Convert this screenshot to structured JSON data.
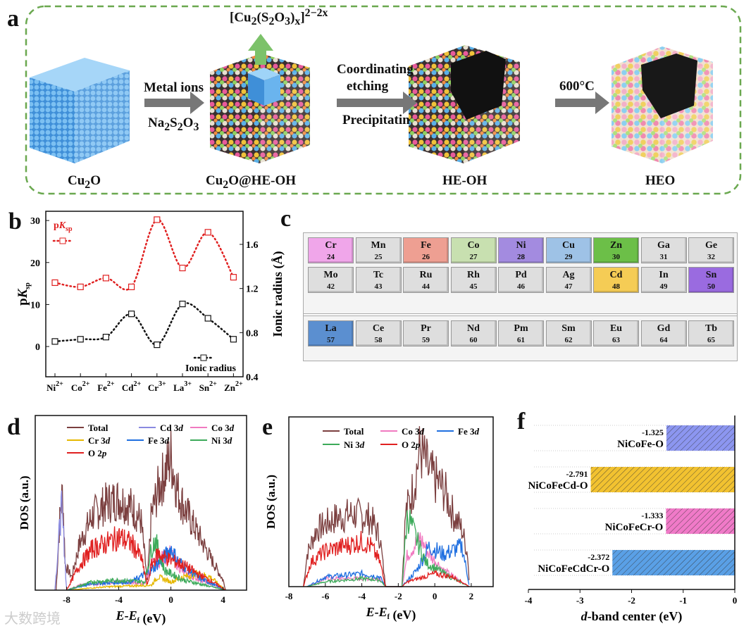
{
  "panel_labels": {
    "a": "a",
    "b": "b",
    "c": "c",
    "d": "d",
    "e": "e",
    "f": "f"
  },
  "panel_a": {
    "stages": [
      "Cu2O",
      "Cu2O@HE-OH",
      "HE-OH",
      "HEO"
    ],
    "stage_labels_html": [
      "Cu<sub>2</sub>O",
      "Cu<sub>2</sub>O@HE-OH",
      "HE-OH",
      "HEO"
    ],
    "step1": {
      "top": "Metal ions",
      "bottom": "Na2S2O3",
      "bottom_html": "Na<sub>2</sub>S<sub>2</sub>O<sub>3</sub>"
    },
    "step2": {
      "top1": "Coordinating",
      "top2": "etching",
      "bottom": "Precipitatin"
    },
    "step3": {
      "top": "600°C"
    },
    "released_complex": "[Cu2(S2O3)x]2−2x",
    "released_complex_html": "[Cu<sub>2</sub>(S<sub>2</sub>O<sub>3</sub>)<sub>x</sub>]<sup>2−2x</sup>",
    "colors": {
      "border": "#6aa84f",
      "arrow": "#777777",
      "green_arrow": "#7cc26a",
      "cu2o": "#5aa9e6"
    }
  },
  "chart_data": [
    {
      "id": "b",
      "type": "line",
      "categories": [
        "Ni2+",
        "Co2+",
        "Fe2+",
        "Cd2+",
        "Cr3+",
        "La3+",
        "Sn2+",
        "Zn2+"
      ],
      "category_labels_html": [
        "Ni<sup>2+</sup>",
        "Co<sup>2+</sup>",
        "Fe<sup>2+</sup>",
        "Cd<sup>2+</sup>",
        "Cr<sup>3+</sup>",
        "La<sup>3+</sup>",
        "Sn<sup>2+</sup>",
        "Zn<sup>2+</sup>"
      ],
      "series": [
        {
          "name": "pKsp",
          "axis": "left",
          "color": "#e02020",
          "values": [
            15.2,
            14.2,
            16.3,
            14.2,
            30.2,
            18.7,
            27.2,
            16.5
          ]
        },
        {
          "name": "Ionic radius",
          "axis": "right",
          "color": "#111111",
          "values": [
            0.72,
            0.74,
            0.76,
            0.97,
            0.69,
            1.06,
            0.93,
            0.74
          ]
        }
      ],
      "ylabel": "pKsp",
      "ylabel_right": "Ionic radius (Å)",
      "ylim": [
        -7.2,
        32.2
      ],
      "yticks": [
        0,
        10,
        20,
        30
      ],
      "ylim_right": [
        0.4,
        1.9
      ],
      "yticks_right": [
        "0.4",
        "0.8",
        "1.2",
        "1.6"
      ],
      "legend": [
        "pKsp",
        "Ionic radius"
      ],
      "legend_placement": "top-left / bottom-right"
    },
    {
      "id": "d",
      "type": "line",
      "xlabel": "E-Ef (eV)",
      "ylabel": "DOS (a.u.)",
      "xlim": [
        -10.4,
        5.8
      ],
      "xticks": [
        -8,
        -4,
        0,
        4
      ],
      "ylim": [
        0,
        1.05
      ],
      "series": [
        {
          "name": "Total",
          "color": "#7b3f3f",
          "env": [
            [
              -8.8,
              0
            ],
            [
              -8.5,
              0.45
            ],
            [
              -8.3,
              0.6
            ],
            [
              -8.1,
              0.15
            ],
            [
              -7.6,
              0.08
            ],
            [
              -7,
              0.28
            ],
            [
              -6,
              0.45
            ],
            [
              -5,
              0.52
            ],
            [
              -4,
              0.55
            ],
            [
              -3,
              0.5
            ],
            [
              -2.3,
              0.42
            ],
            [
              -1.8,
              0.05
            ],
            [
              -1.5,
              0.45
            ],
            [
              -1,
              0.6
            ],
            [
              -0.5,
              0.7
            ],
            [
              0,
              0.8
            ],
            [
              0.5,
              0.6
            ],
            [
              1,
              0.5
            ],
            [
              2,
              0.35
            ],
            [
              3,
              0.2
            ],
            [
              4,
              0.06
            ],
            [
              4.2,
              0
            ]
          ]
        },
        {
          "name": "Cd 3d",
          "color": "#8a8ae0",
          "env": [
            [
              -8.9,
              0
            ],
            [
              -8.6,
              0.3
            ],
            [
              -8.4,
              0.5
            ],
            [
              -8.2,
              0.3
            ],
            [
              -8.0,
              0
            ],
            [
              4.2,
              0
            ]
          ]
        },
        {
          "name": "Co 3d",
          "color": "#f07ac0",
          "env": [
            [
              -8,
              0
            ],
            [
              -7,
              0.03
            ],
            [
              -4,
              0.05
            ],
            [
              -2,
              0.04
            ],
            [
              -1.5,
              0.15
            ],
            [
              -0.5,
              0.2
            ],
            [
              0,
              0.22
            ],
            [
              1,
              0.1
            ],
            [
              3,
              0.04
            ],
            [
              4.2,
              0
            ]
          ]
        },
        {
          "name": "Cr 3d",
          "color": "#e6b800",
          "env": [
            [
              -8,
              0
            ],
            [
              -5,
              0.02
            ],
            [
              -1.5,
              0.03
            ],
            [
              -1,
              0.08
            ],
            [
              0,
              0.05
            ],
            [
              1,
              0.08
            ],
            [
              2,
              0.1
            ],
            [
              3,
              0.08
            ],
            [
              4.2,
              0
            ]
          ]
        },
        {
          "name": "Fe 3d",
          "color": "#1f6fe0",
          "env": [
            [
              -8,
              0
            ],
            [
              -6,
              0.04
            ],
            [
              -3,
              0.05
            ],
            [
              -1.5,
              0.12
            ],
            [
              -0.5,
              0.2
            ],
            [
              0,
              0.25
            ],
            [
              0.5,
              0.18
            ],
            [
              2,
              0.08
            ],
            [
              4.2,
              0
            ]
          ]
        },
        {
          "name": "Ni 3d",
          "color": "#3caa5a",
          "env": [
            [
              -8,
              0
            ],
            [
              -6,
              0.05
            ],
            [
              -4,
              0.06
            ],
            [
              -2,
              0.05
            ],
            [
              -1.5,
              0.25
            ],
            [
              -1.2,
              0.3
            ],
            [
              -0.5,
              0.12
            ],
            [
              1,
              0.06
            ],
            [
              4.2,
              0
            ]
          ]
        },
        {
          "name": "O 2p",
          "color": "#e02020",
          "env": [
            [
              -8,
              0
            ],
            [
              -7,
              0.15
            ],
            [
              -6,
              0.25
            ],
            [
              -5,
              0.28
            ],
            [
              -4,
              0.32
            ],
            [
              -3,
              0.28
            ],
            [
              -2.3,
              0.2
            ],
            [
              -1.8,
              0.03
            ],
            [
              -1.5,
              0.15
            ],
            [
              -1,
              0.22
            ],
            [
              0,
              0.18
            ],
            [
              1,
              0.15
            ],
            [
              2,
              0.1
            ],
            [
              3,
              0.06
            ],
            [
              4.2,
              0
            ]
          ]
        }
      ],
      "legend": [
        "Total",
        "Cd 3d",
        "Co 3d",
        "Cr 3d",
        "Fe 3d",
        "Ni 3d",
        "O 2p"
      ],
      "legend_html": [
        "Total",
        "Cd 3<i>d</i>",
        "Co 3<i>d</i>",
        "Cr 3<i>d</i>",
        "Fe 3<i>d</i>",
        "Ni 3<i>d</i>",
        "O 2<i>p</i>"
      ]
    },
    {
      "id": "e",
      "type": "line",
      "xlabel": "E-Ef (eV)",
      "ylabel": "DOS (a.u.)",
      "xlim": [
        -8,
        3.2
      ],
      "xticks": [
        -8,
        -6,
        -4,
        -2,
        0,
        2
      ],
      "ylim": [
        0,
        1.05
      ],
      "series": [
        {
          "name": "Total",
          "color": "#7b3f3f",
          "env": [
            [
              -7.2,
              0
            ],
            [
              -7,
              0.2
            ],
            [
              -6.5,
              0.35
            ],
            [
              -5.5,
              0.42
            ],
            [
              -4.5,
              0.45
            ],
            [
              -3.5,
              0.42
            ],
            [
              -3,
              0.3
            ],
            [
              -2.7,
              0
            ],
            [
              -1.8,
              0
            ],
            [
              -1.6,
              0.45
            ],
            [
              -1.2,
              0.6
            ],
            [
              -0.8,
              0.85
            ],
            [
              -0.3,
              0.7
            ],
            [
              0.5,
              0.6
            ],
            [
              1,
              0.45
            ],
            [
              1.5,
              0.35
            ],
            [
              1.8,
              0.2
            ],
            [
              1.9,
              0
            ]
          ]
        },
        {
          "name": "Co 3d",
          "color": "#f07ac0",
          "env": [
            [
              -7,
              0
            ],
            [
              -6,
              0.05
            ],
            [
              -3,
              0.05
            ],
            [
              -2.7,
              0
            ],
            [
              -1.8,
              0
            ],
            [
              -1.5,
              0.2
            ],
            [
              -0.8,
              0.3
            ],
            [
              -0.3,
              0.2
            ],
            [
              0.5,
              0.1
            ],
            [
              1.9,
              0
            ]
          ]
        },
        {
          "name": "Fe 3d",
          "color": "#1f6fe0",
          "env": [
            [
              -7,
              0
            ],
            [
              -6,
              0.06
            ],
            [
              -4,
              0.08
            ],
            [
              -3,
              0.06
            ],
            [
              -2.7,
              0
            ],
            [
              -1.8,
              0
            ],
            [
              -1,
              0.1
            ],
            [
              -0.3,
              0.25
            ],
            [
              0.5,
              0.2
            ],
            [
              1.5,
              0.25
            ],
            [
              1.9,
              0
            ]
          ]
        },
        {
          "name": "Ni 3d",
          "color": "#3caa5a",
          "env": [
            [
              -7,
              0
            ],
            [
              -6,
              0.03
            ],
            [
              -4,
              0.05
            ],
            [
              -3,
              0.04
            ],
            [
              -2.7,
              0
            ],
            [
              -1.8,
              0
            ],
            [
              -1.5,
              0.45
            ],
            [
              -1.2,
              0.35
            ],
            [
              -0.5,
              0.15
            ],
            [
              1,
              0.05
            ],
            [
              1.9,
              0
            ]
          ]
        },
        {
          "name": "O 2p",
          "color": "#e02020",
          "env": [
            [
              -7.2,
              0
            ],
            [
              -6.8,
              0.15
            ],
            [
              -6,
              0.22
            ],
            [
              -5,
              0.25
            ],
            [
              -4,
              0.28
            ],
            [
              -3.5,
              0.25
            ],
            [
              -3,
              0.15
            ],
            [
              -2.7,
              0
            ],
            [
              -1.8,
              0
            ],
            [
              -1.5,
              0.03
            ],
            [
              0,
              0.08
            ],
            [
              1,
              0.06
            ],
            [
              1.9,
              0
            ]
          ]
        }
      ],
      "legend": [
        "Total",
        "Co 3d",
        "Fe 3d",
        "Ni 3d",
        "O 2p"
      ],
      "legend_html": [
        "Total",
        "Co 3<i>d</i>",
        "Fe 3<i>d</i>",
        "Ni 3<i>d</i>",
        "O 2<i>p</i>"
      ]
    },
    {
      "id": "f",
      "type": "bar",
      "orientation": "horizontal",
      "categories": [
        "NiCoFe-O",
        "NiCoFeCd-O",
        "NiCoFeCr-O",
        "NiCoFeCdCr-O"
      ],
      "values": [
        -1.325,
        -2.791,
        -1.333,
        -2.372
      ],
      "value_labels": [
        "-1.325",
        "-2.791",
        "-1.333",
        "-2.372"
      ],
      "colors": [
        "#8c96f0",
        "#f2c230",
        "#f07ac8",
        "#5aa0e6"
      ],
      "xlabel": "d-band center (eV)",
      "xlim": [
        -4,
        0
      ],
      "xticks": [
        "-4",
        "-3",
        "-2",
        "-1",
        "0"
      ]
    }
  ],
  "panel_c": {
    "rows": [
      [
        [
          "Cr",
          "24",
          "#f0a6ea"
        ],
        [
          "Mn",
          "25",
          "#dedede"
        ],
        [
          "Fe",
          "26",
          "#ee9f92"
        ],
        [
          "Co",
          "27",
          "#c8e0b0"
        ],
        [
          "Ni",
          "28",
          "#a38be0"
        ],
        [
          "Cu",
          "29",
          "#9ec2e6"
        ],
        [
          "Zn",
          "30",
          "#6cbf48"
        ],
        [
          "Ga",
          "31",
          "#dedede"
        ],
        [
          "Ge",
          "32",
          "#dedede"
        ]
      ],
      [
        [
          "Mo",
          "42",
          "#dedede"
        ],
        [
          "Tc",
          "43",
          "#dedede"
        ],
        [
          "Ru",
          "44",
          "#dedede"
        ],
        [
          "Rh",
          "45",
          "#dedede"
        ],
        [
          "Pd",
          "46",
          "#dedede"
        ],
        [
          "Ag",
          "47",
          "#dedede"
        ],
        [
          "Cd",
          "48",
          "#f5cc55"
        ],
        [
          "In",
          "49",
          "#dedede"
        ],
        [
          "Sn",
          "50",
          "#9a6be0"
        ]
      ],
      [
        [
          "La",
          "57",
          "#5b8fd0"
        ],
        [
          "Ce",
          "58",
          "#dedede"
        ],
        [
          "Pr",
          "59",
          "#dedede"
        ],
        [
          "Nd",
          "60",
          "#dedede"
        ],
        [
          "Pm",
          "61",
          "#dedede"
        ],
        [
          "Sm",
          "62",
          "#dedede"
        ],
        [
          "Eu",
          "63",
          "#dedede"
        ],
        [
          "Gd",
          "64",
          "#dedede"
        ],
        [
          "Tb",
          "65",
          "#dedede"
        ]
      ]
    ]
  },
  "watermark": "大数跨境"
}
